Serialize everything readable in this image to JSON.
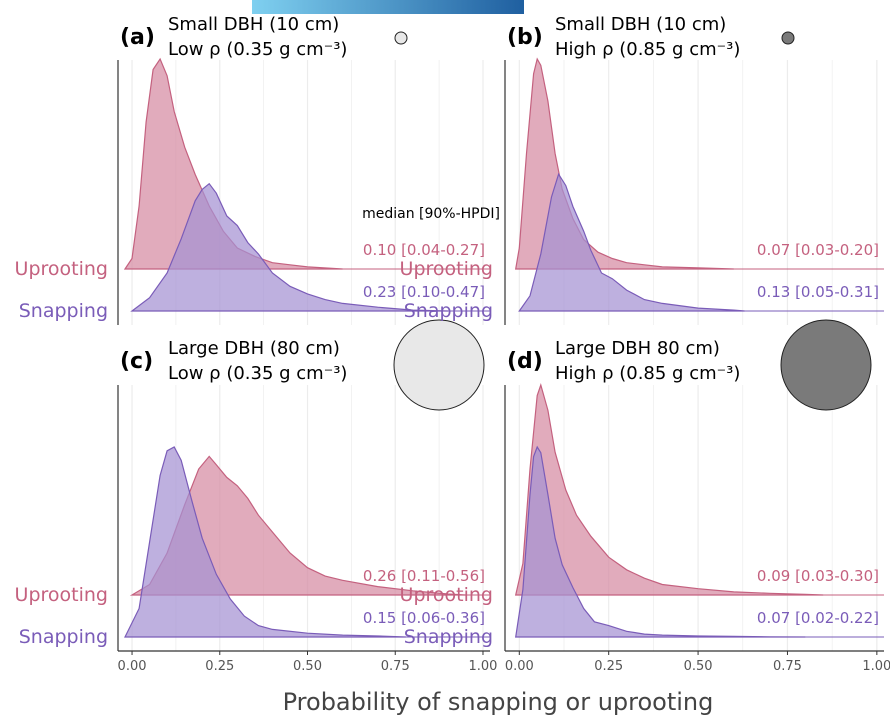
{
  "figure": {
    "xlabel": "Probability of snapping or uprooting",
    "xticks": [
      "0.00",
      "0.25",
      "0.50",
      "0.75",
      "1.00"
    ],
    "xlim": [
      -0.04,
      1.02
    ],
    "row_labels": {
      "uprooting": "Uprooting",
      "snapping": "Snapping"
    },
    "legend_header": "median [90%-HPDI]",
    "colors": {
      "uprooting": "#c4617f",
      "uprooting_fill": "#d58ba2",
      "snapping": "#7a5cb8",
      "snapping_fill": "#a591d3",
      "topbar_left": "#7fd0f0",
      "topbar_right": "#1f5fa0",
      "circle_light": "#e8e8e8",
      "circle_dark": "#7a7a7a"
    }
  },
  "chart_data": [
    {
      "type": "area",
      "panel": "(a)",
      "title": "Small DBH (10 cm)",
      "subtitle": "Low ρ (0.35 g cm⁻³)",
      "density_size": "small",
      "density_shade": "light",
      "uprooting_label": "0.10 [0.04-0.27]",
      "snapping_label": "0.23 [0.10-0.47]",
      "series": [
        {
          "name": "Uprooting",
          "x": [
            -0.02,
            0.0,
            0.02,
            0.04,
            0.06,
            0.08,
            0.1,
            0.12,
            0.15,
            0.18,
            0.22,
            0.26,
            0.3,
            0.35,
            0.4,
            0.45,
            0.5,
            0.6
          ],
          "y": [
            0,
            0.05,
            0.3,
            0.7,
            0.95,
            1.0,
            0.92,
            0.75,
            0.58,
            0.45,
            0.3,
            0.18,
            0.1,
            0.06,
            0.03,
            0.02,
            0.01,
            0
          ]
        },
        {
          "name": "Snapping",
          "x": [
            0.0,
            0.05,
            0.1,
            0.14,
            0.18,
            0.2,
            0.22,
            0.24,
            0.27,
            0.3,
            0.33,
            0.36,
            0.4,
            0.45,
            0.5,
            0.55,
            0.6,
            0.7,
            0.8,
            0.9
          ],
          "y": [
            0,
            0.07,
            0.2,
            0.38,
            0.58,
            0.64,
            0.67,
            0.62,
            0.5,
            0.45,
            0.36,
            0.3,
            0.2,
            0.13,
            0.09,
            0.06,
            0.04,
            0.02,
            0.005,
            0
          ]
        }
      ]
    },
    {
      "type": "area",
      "panel": "(b)",
      "title": "Small DBH (10 cm)",
      "subtitle": "High ρ (0.85 g cm⁻³)",
      "density_size": "small",
      "density_shade": "dark",
      "uprooting_label": "0.07 [0.03-0.20]",
      "snapping_label": "0.13 [0.05-0.31]",
      "series": [
        {
          "name": "Uprooting",
          "x": [
            -0.01,
            0.0,
            0.02,
            0.04,
            0.05,
            0.06,
            0.08,
            0.1,
            0.12,
            0.15,
            0.18,
            0.22,
            0.26,
            0.3,
            0.35,
            0.4,
            0.5,
            0.6
          ],
          "y": [
            0,
            0.1,
            0.55,
            0.93,
            1.0,
            0.97,
            0.8,
            0.55,
            0.38,
            0.24,
            0.14,
            0.08,
            0.05,
            0.03,
            0.02,
            0.01,
            0.005,
            0
          ]
        },
        {
          "name": "Snapping",
          "x": [
            0.0,
            0.03,
            0.06,
            0.09,
            0.11,
            0.13,
            0.15,
            0.18,
            0.2,
            0.23,
            0.26,
            0.3,
            0.35,
            0.4,
            0.5,
            0.6,
            0.63
          ],
          "y": [
            0,
            0.08,
            0.3,
            0.6,
            0.72,
            0.66,
            0.55,
            0.42,
            0.32,
            0.2,
            0.17,
            0.11,
            0.06,
            0.04,
            0.015,
            0.005,
            0
          ]
        }
      ]
    },
    {
      "type": "area",
      "panel": "(c)",
      "title": "Large DBH (80 cm)",
      "subtitle": "Low ρ (0.35 g cm⁻³)",
      "density_size": "large",
      "density_shade": "light",
      "uprooting_label": "0.26 [0.11-0.56]",
      "snapping_label": "0.15 [0.06-0.36]",
      "series": [
        {
          "name": "Uprooting",
          "x": [
            0.0,
            0.05,
            0.1,
            0.15,
            0.19,
            0.22,
            0.24,
            0.27,
            0.3,
            0.33,
            0.36,
            0.4,
            0.45,
            0.5,
            0.55,
            0.6,
            0.7,
            0.8,
            0.9,
            0.95
          ],
          "y": [
            0,
            0.05,
            0.2,
            0.43,
            0.6,
            0.66,
            0.62,
            0.56,
            0.52,
            0.46,
            0.38,
            0.3,
            0.2,
            0.13,
            0.09,
            0.07,
            0.04,
            0.02,
            0.005,
            0
          ]
        },
        {
          "name": "Snapping",
          "x": [
            -0.02,
            0.02,
            0.05,
            0.08,
            0.1,
            0.12,
            0.14,
            0.17,
            0.2,
            0.24,
            0.28,
            0.32,
            0.36,
            0.4,
            0.5,
            0.6,
            0.7,
            0.78
          ],
          "y": [
            0,
            0.15,
            0.5,
            0.85,
            0.98,
            1.0,
            0.93,
            0.72,
            0.52,
            0.33,
            0.2,
            0.11,
            0.06,
            0.04,
            0.02,
            0.01,
            0.005,
            0
          ]
        }
      ]
    },
    {
      "type": "area",
      "panel": "(d)",
      "title": "Large DBH 80 cm)",
      "subtitle": "High ρ (0.85 g cm⁻³)",
      "density_size": "large",
      "density_shade": "dark",
      "uprooting_label": "0.09 [0.03-0.30]",
      "snapping_label": "0.07 [0.02-0.22]",
      "series": [
        {
          "name": "Uprooting",
          "x": [
            -0.01,
            0.01,
            0.03,
            0.05,
            0.06,
            0.08,
            0.1,
            0.13,
            0.16,
            0.2,
            0.25,
            0.3,
            0.35,
            0.4,
            0.5,
            0.6,
            0.7,
            0.8,
            0.85
          ],
          "y": [
            0,
            0.15,
            0.6,
            0.95,
            1.0,
            0.88,
            0.68,
            0.5,
            0.38,
            0.28,
            0.18,
            0.12,
            0.08,
            0.05,
            0.03,
            0.015,
            0.008,
            0.003,
            0
          ]
        },
        {
          "name": "Snapping",
          "x": [
            -0.01,
            0.01,
            0.03,
            0.04,
            0.05,
            0.06,
            0.08,
            0.1,
            0.12,
            0.15,
            0.18,
            0.21,
            0.25,
            0.3,
            0.35,
            0.4,
            0.5,
            0.6,
            0.7,
            0.8
          ],
          "y": [
            0,
            0.25,
            0.75,
            0.95,
            1.0,
            0.97,
            0.75,
            0.52,
            0.38,
            0.26,
            0.15,
            0.08,
            0.06,
            0.03,
            0.015,
            0.01,
            0.005,
            0.003,
            0.001,
            0
          ]
        }
      ]
    }
  ]
}
